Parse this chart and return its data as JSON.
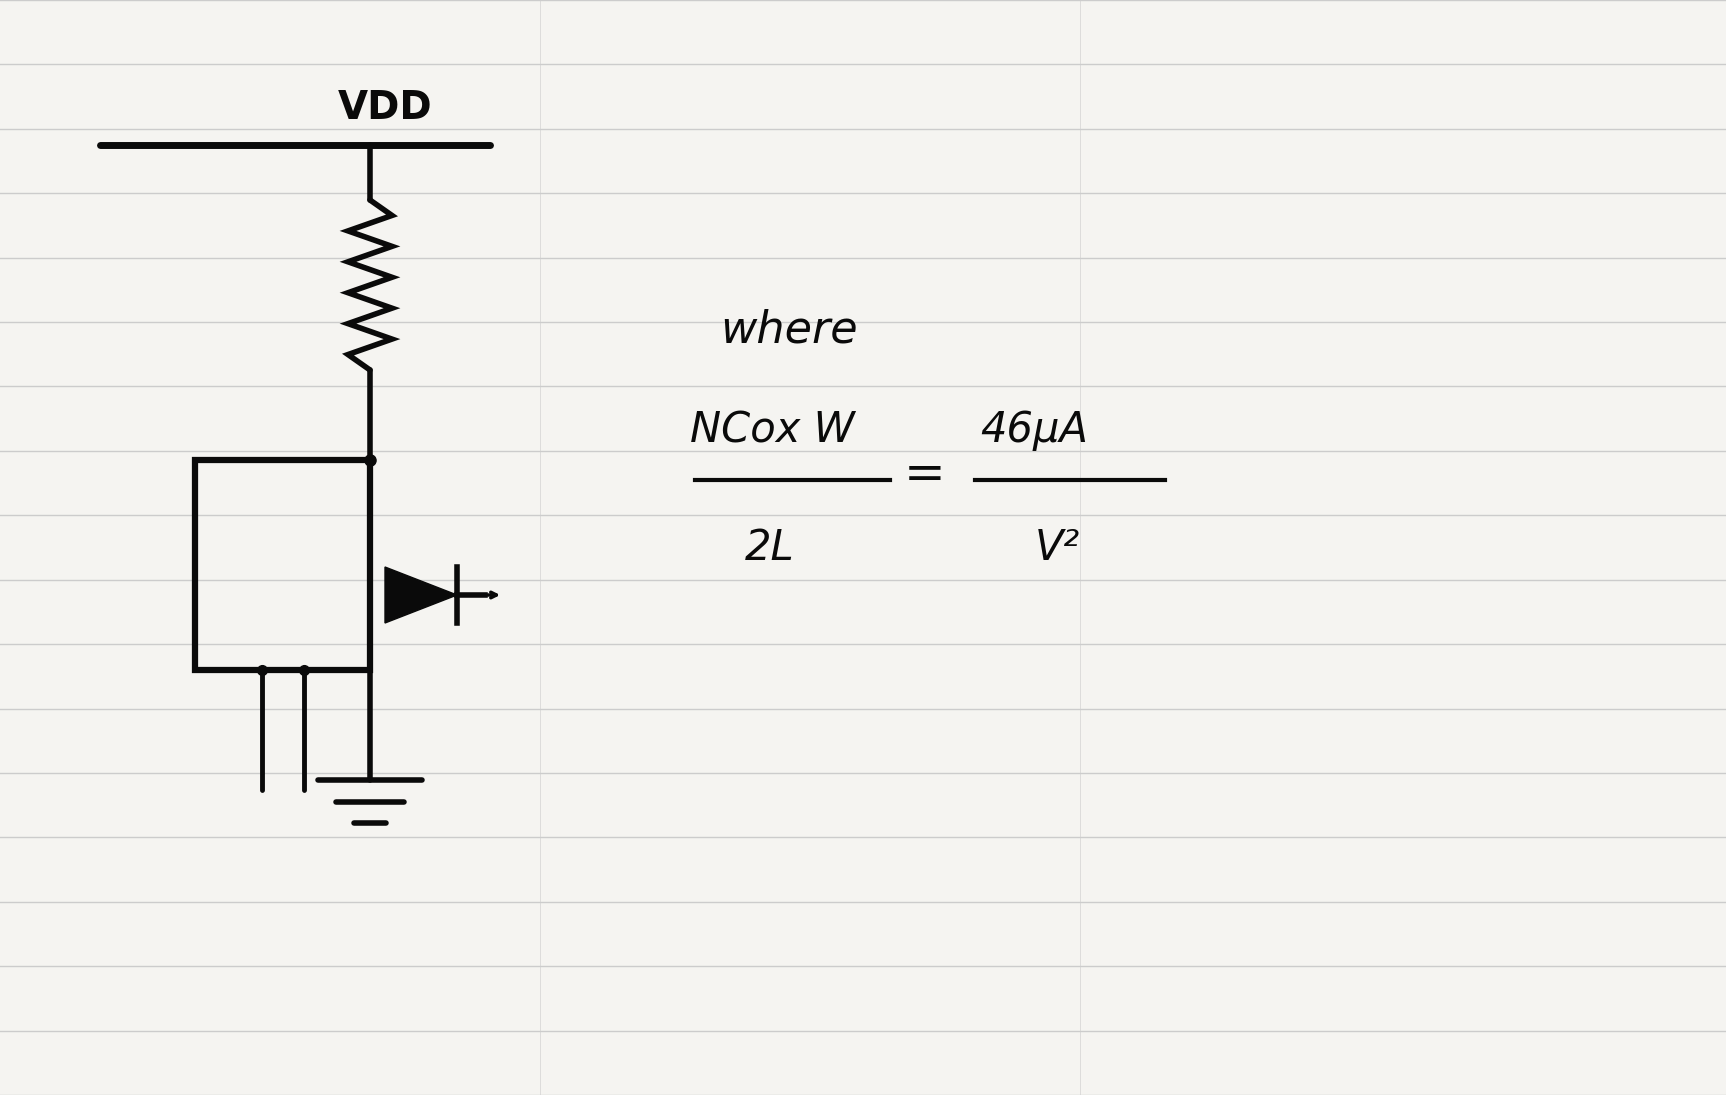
{
  "bg_color": "#f5f4f1",
  "line_color": "#cccccc",
  "ink_color": "#0a0a0a",
  "fig_width": 17.26,
  "fig_height": 10.95,
  "dpi": 100,
  "num_lines": 17,
  "vdd_label": "VDD",
  "where_label": "where",
  "eq_num_left": "NCox W",
  "eq_den_left": "2L",
  "eq_num_right": "46μA",
  "eq_den_right": "V²",
  "eq_equals": "="
}
